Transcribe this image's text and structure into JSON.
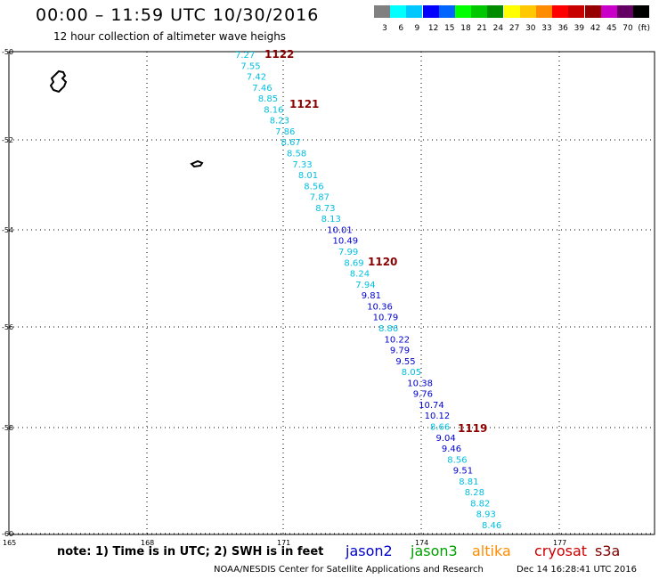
{
  "header": {
    "title": "00:00 – 11:59 UTC 10/30/2016",
    "subtitle": "12 hour collection of altimeter wave heighs"
  },
  "colorbar": {
    "colors": [
      "#808080",
      "#00ffff",
      "#00c8ff",
      "#0000ff",
      "#0064ff",
      "#00ff00",
      "#00c800",
      "#008c00",
      "#ffff00",
      "#ffc800",
      "#ff8c00",
      "#ff0000",
      "#c80000",
      "#960000",
      "#c800c8",
      "#640064",
      "#000000"
    ],
    "labels": [
      "3",
      "6",
      "9",
      "12",
      "15",
      "18",
      "21",
      "24",
      "27",
      "30",
      "33",
      "36",
      "39",
      "42",
      "45",
      "70",
      "(ft)"
    ]
  },
  "map": {
    "lat_labels": [
      "-50",
      "-52",
      "-54",
      "-56",
      "-58",
      "-60"
    ],
    "lon_labels": [
      "165",
      "168",
      "171",
      "174",
      "177"
    ],
    "wave_points": [
      {
        "v": "7.27",
        "c": "#00bfe0"
      },
      {
        "v": "7.55",
        "c": "#00bfe0"
      },
      {
        "v": "7.42",
        "c": "#00bfe0"
      },
      {
        "v": "7.46",
        "c": "#00bfe0"
      },
      {
        "v": "8.85",
        "c": "#00bfe0"
      },
      {
        "v": "8.16",
        "c": "#00bfe0"
      },
      {
        "v": "8.23",
        "c": "#00bfe0"
      },
      {
        "v": "7.86",
        "c": "#00bfe0"
      },
      {
        "v": "8.67",
        "c": "#00bfe0"
      },
      {
        "v": "8.58",
        "c": "#00bfe0"
      },
      {
        "v": "7.33",
        "c": "#00bfe0"
      },
      {
        "v": "8.01",
        "c": "#00bfe0"
      },
      {
        "v": "8.56",
        "c": "#00bfe0"
      },
      {
        "v": "7.87",
        "c": "#00bfe0"
      },
      {
        "v": "8.73",
        "c": "#00bfe0"
      },
      {
        "v": "8.13",
        "c": "#00bfe0"
      },
      {
        "v": "10.01",
        "c": "#0000d0"
      },
      {
        "v": "10.49",
        "c": "#0000d0"
      },
      {
        "v": "7.99",
        "c": "#00bfe0"
      },
      {
        "v": "8.69",
        "c": "#00bfe0"
      },
      {
        "v": "8.24",
        "c": "#00bfe0"
      },
      {
        "v": "7.94",
        "c": "#00bfe0"
      },
      {
        "v": "9.81",
        "c": "#0000d0"
      },
      {
        "v": "10.36",
        "c": "#0000d0"
      },
      {
        "v": "10.79",
        "c": "#0000d0"
      },
      {
        "v": "8.86",
        "c": "#00bfe0"
      },
      {
        "v": "10.22",
        "c": "#0000d0"
      },
      {
        "v": "9.79",
        "c": "#0000d0"
      },
      {
        "v": "9.55",
        "c": "#0000d0"
      },
      {
        "v": "8.05",
        "c": "#00bfe0"
      },
      {
        "v": "10.38",
        "c": "#0000d0"
      },
      {
        "v": "9.76",
        "c": "#0000d0"
      },
      {
        "v": "10.74",
        "c": "#0000d0"
      },
      {
        "v": "10.12",
        "c": "#0000d0"
      },
      {
        "v": "8.66",
        "c": "#00bfe0"
      },
      {
        "v": "9.04",
        "c": "#0000d0"
      },
      {
        "v": "9.46",
        "c": "#0000d0"
      },
      {
        "v": "8.56",
        "c": "#00bfe0"
      },
      {
        "v": "9.51",
        "c": "#0000d0"
      },
      {
        "v": "8.81",
        "c": "#00bfe0"
      },
      {
        "v": "8.28",
        "c": "#00bfe0"
      },
      {
        "v": "8.82",
        "c": "#00bfe0"
      },
      {
        "v": "8.93",
        "c": "#00bfe0"
      },
      {
        "v": "8.46",
        "c": "#00bfe0"
      }
    ],
    "time_labels": [
      "1122",
      "1121",
      "1120",
      "1119"
    ],
    "time_color": "#8b0000"
  },
  "footer": {
    "note": "note: 1) Time is in UTC; 2) SWH is in feet",
    "satellites": [
      {
        "name": "jason2",
        "color": "#0000cc"
      },
      {
        "name": "jason3",
        "color": "#00a000"
      },
      {
        "name": "altika",
        "color": "#ff8c00"
      },
      {
        "name": "cryosat",
        "color": "#cc0000"
      },
      {
        "name": "s3a",
        "color": "#800000"
      }
    ],
    "credit": "NOAA/NESDIS Center for Satellite Applications and Research",
    "datestamp": "Dec 14 16:28:41 UTC 2016"
  }
}
